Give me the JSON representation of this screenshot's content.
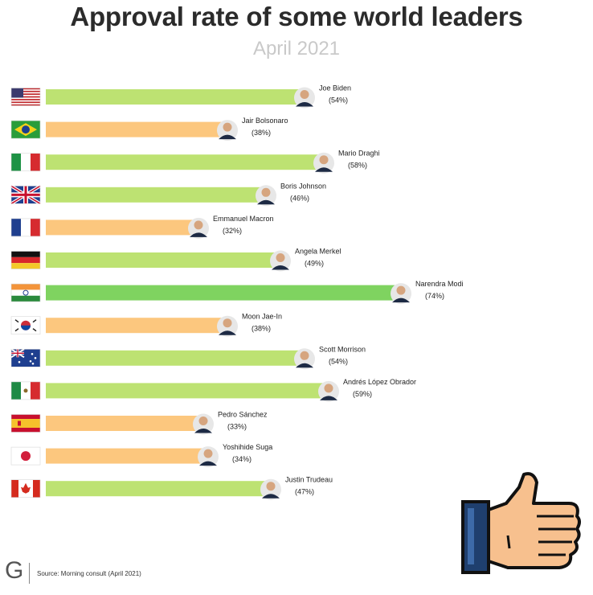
{
  "title": "Approval rate of some world leaders",
  "subtitle": "April 2021",
  "source": "Source: Morning consult (April 2021)",
  "logo_letter": "G",
  "colors": {
    "green": "#bde272",
    "orange": "#fcc77e",
    "top": "#7fd360"
  },
  "chart_data": {
    "type": "bar",
    "orientation": "horizontal",
    "title": "Approval rate of some world leaders",
    "subtitle": "April 2021",
    "categories": [
      "Joe Biden",
      "Jair Bolsonaro",
      "Mario Draghi",
      "Boris Johnson",
      "Emmanuel Macron",
      "Angela Merkel",
      "Narendra Modi",
      "Moon Jae-In",
      "Scott Morrison",
      "Andrés López Obrador",
      "Pedro Sánchez",
      "Yoshihide Suga",
      "Justin Trudeau"
    ],
    "values": [
      54,
      38,
      58,
      46,
      32,
      49,
      74,
      38,
      54,
      59,
      33,
      34,
      47
    ],
    "value_labels": [
      "(54%)",
      "(38%)",
      "(58%)",
      "(46%)",
      "(32%)",
      "(49%)",
      "(74%)",
      "(38%)",
      "(54%)",
      "(59%)",
      "(33%)",
      "(34%)",
      "(47%)"
    ],
    "bar_colors": [
      "green",
      "orange",
      "green",
      "green",
      "orange",
      "green",
      "top",
      "orange",
      "green",
      "green",
      "orange",
      "orange",
      "green"
    ],
    "flags": [
      "usa",
      "brazil",
      "italy",
      "uk",
      "france",
      "germany",
      "india",
      "south-korea",
      "australia",
      "mexico",
      "spain",
      "japan",
      "canada"
    ],
    "xlim": [
      0,
      100
    ]
  }
}
